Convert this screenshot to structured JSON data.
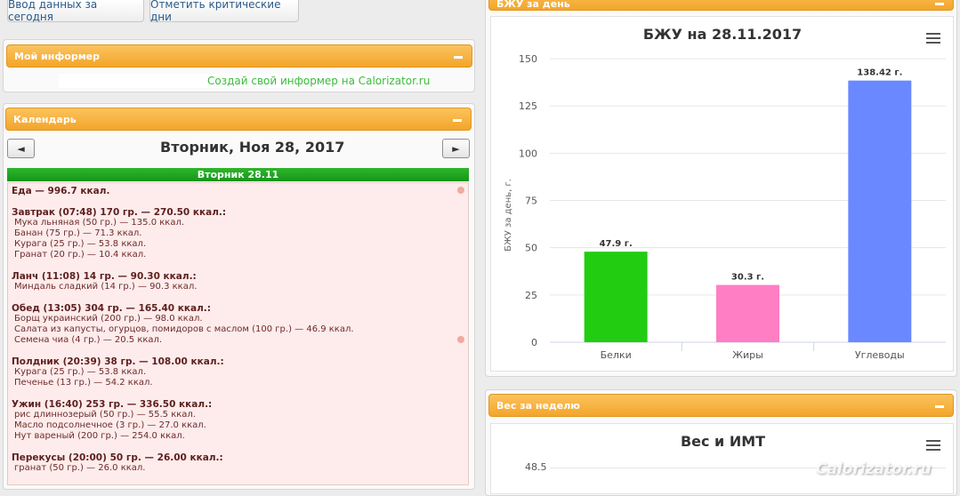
{
  "top_buttons": {
    "enter_today": "Ввод данных за сегодня",
    "mark_critical": "Отметить критические дни"
  },
  "informer": {
    "title": "Мой информер",
    "link_text": "Создай свой информер на Calorizator.ru"
  },
  "calendar": {
    "title": "Календарь",
    "date_title": "Вторник, Ноя 28, 2017",
    "prev_glyph": "◄",
    "next_glyph": "►",
    "day_bar": "Вторник 28.11",
    "food_total": "Еда — 996.7 ккал.",
    "meals": [
      {
        "head": "Завтрак (07:48) 170 гр. — 270.50 ккал.:",
        "items": [
          "Мука льняная (50 гр.) — 135.0 ккал.",
          "Банан (75 гр.) — 71.3 ккал.",
          "Курага (25 гр.) — 53.8 ккал.",
          "Гранат (20 гр.) — 10.4 ккал."
        ]
      },
      {
        "head": "Ланч (11:08) 14 гр. — 90.30 ккал.:",
        "items": [
          "Миндаль сладкий (14 гр.) — 90.3 ккал."
        ]
      },
      {
        "head": "Обед (13:05) 304 гр. — 165.40 ккал.:",
        "items": [
          "Борщ украинский (200 гр.) — 98.0 ккал.",
          "Салата из капусты, огурцов, помидоров с маслом (100 гр.) — 46.9 ккал.",
          "Семена чиа (4 гр.) — 20.5 ккал."
        ]
      },
      {
        "head": "Полдник (20:39) 38 гр. — 108.00 ккал.:",
        "items": [
          "Курага (25 гр.) — 53.8 ккал.",
          "Печенье (13 гр.) — 54.2 ккал."
        ]
      },
      {
        "head": "Ужин (16:40) 253 гр. — 336.50 ккал.:",
        "items": [
          "рис длиннозерый (50 гр.) — 55.5 ккал.",
          "Масло подсолнечное (3 гр.) — 27.0 ккал.",
          "Нут вареный (200 гр.) — 254.0 ккал."
        ]
      },
      {
        "head": "Перекусы (20:00) 50 гр. — 26.00 ккал.:",
        "items": [
          "гранат (50 гр.) — 26.0 ккал."
        ]
      }
    ]
  },
  "bju_panel": {
    "title": "БЖУ за день"
  },
  "chart_data": {
    "type": "bar",
    "title": "БЖУ на 28.11.2017",
    "ylabel": "БЖУ за день, г.",
    "xlabel": "",
    "categories": [
      "Белки",
      "Жиры",
      "Углеводы"
    ],
    "values": [
      47.9,
      30.3,
      138.42
    ],
    "value_labels": [
      "47.9 г.",
      "30.3 г.",
      "138.42 г."
    ],
    "colors": [
      "#22cc11",
      "#ff7ec4",
      "#6a88ff"
    ],
    "ylim": [
      0,
      150
    ],
    "yticks": [
      "0",
      "25",
      "50",
      "75",
      "100",
      "125",
      "150"
    ],
    "grid": true,
    "legend": "none"
  },
  "weight_panel": {
    "title": "Вес за неделю",
    "chart_title": "Вес и ИМТ",
    "first_tick": "48.5"
  },
  "watermark": "Calorizator.ru"
}
